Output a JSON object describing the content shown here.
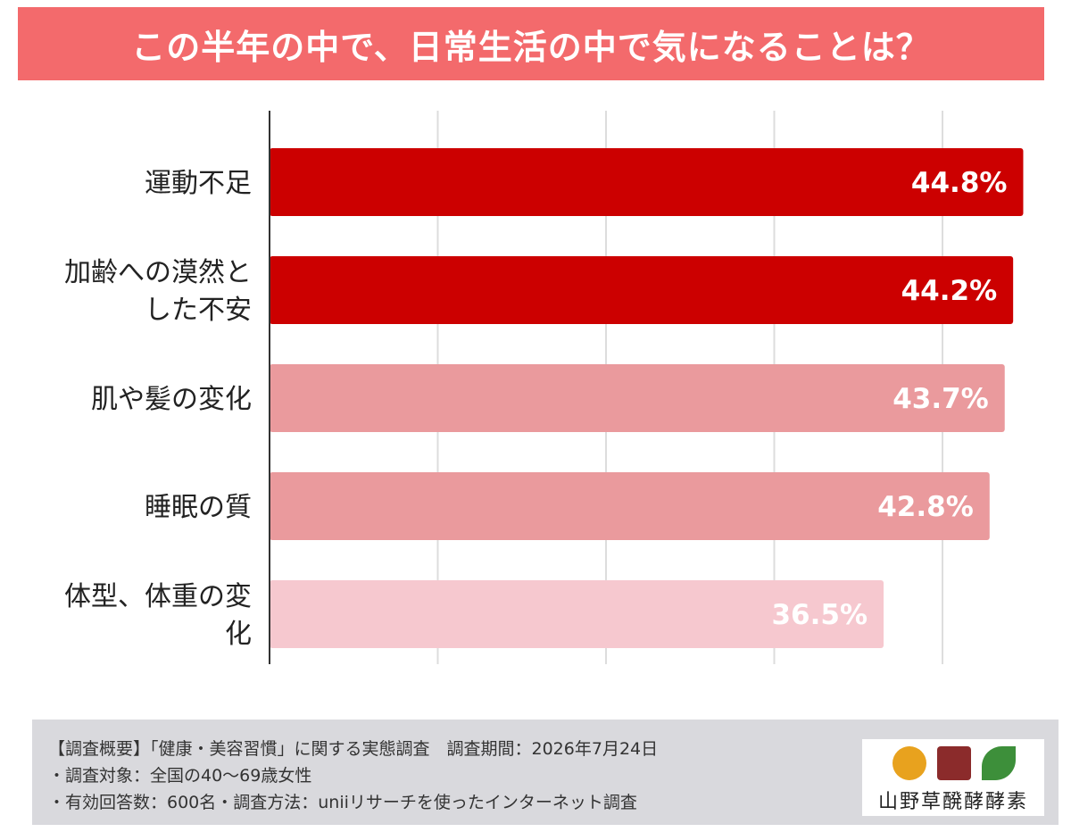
{
  "title": "この半年の中で、日常生活の中で気になることは？",
  "chart_data": {
    "type": "bar",
    "orientation": "horizontal",
    "categories": [
      [
        "運動不足"
      ],
      [
        "加齢への漠然と",
        "した不安"
      ],
      [
        "肌や髪の変化"
      ],
      [
        "睡眠の質"
      ],
      [
        "体型、体重の変",
        "化"
      ]
    ],
    "values": [
      44.8,
      44.2,
      43.7,
      42.8,
      36.5
    ],
    "value_labels": [
      "44.8%",
      "44.2%",
      "43.7%",
      "42.8%",
      "36.5%"
    ],
    "colors": [
      "#cc0000",
      "#cc0000",
      "#ea9a9d",
      "#ea9a9d",
      "#f6c8cf"
    ],
    "xlim": [
      0,
      40
    ],
    "grid": true,
    "value_label_color": "#ffffff"
  },
  "footer": {
    "lines": [
      "【調査概要】「健康・美容習慣」に関する実態調査　調査期間：2026年7月24日",
      "・調査対象：全国の40～69歳女性",
      "・有効回答数：600名・調査方法：uniiリサーチを使ったインターネット調査"
    ]
  },
  "logo": {
    "text": "山野草醗酵酵素"
  }
}
